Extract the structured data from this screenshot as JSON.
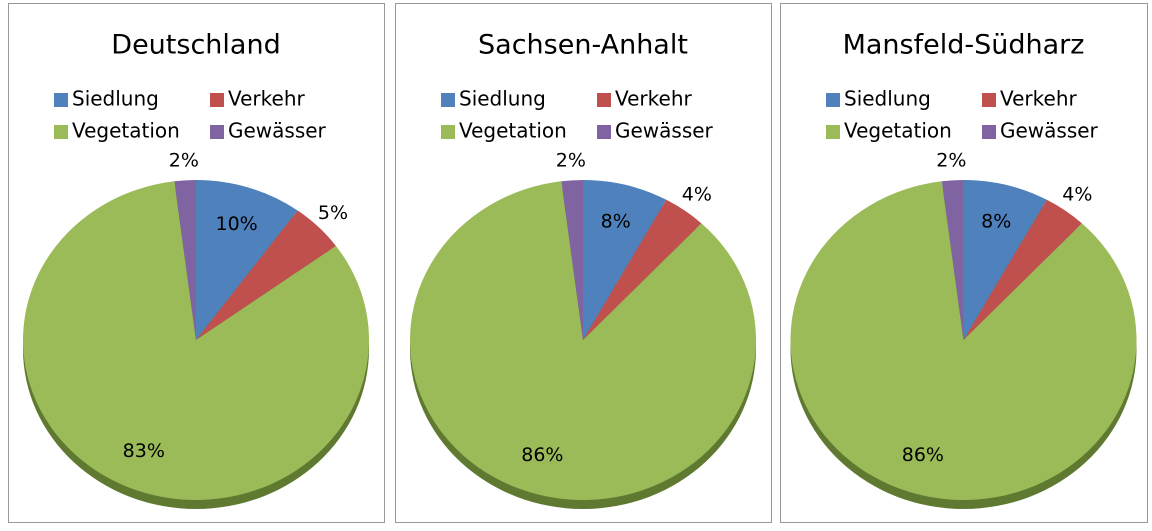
{
  "chart_data": [
    {
      "type": "pie",
      "title": "Deutschland",
      "categories": [
        "Siedlung",
        "Verkehr",
        "Vegetation",
        "Gewässer"
      ],
      "values": [
        10,
        5,
        83,
        2
      ],
      "value_labels": [
        "10%",
        "5%",
        "83%",
        "2%"
      ],
      "colors": [
        "#4f81bd",
        "#c0504d",
        "#9bbb59",
        "#8064a2"
      ]
    },
    {
      "type": "pie",
      "title": "Sachsen-Anhalt",
      "categories": [
        "Siedlung",
        "Verkehr",
        "Vegetation",
        "Gewässer"
      ],
      "values": [
        8,
        4,
        86,
        2
      ],
      "value_labels": [
        "8%",
        "4%",
        "86%",
        "2%"
      ],
      "colors": [
        "#4f81bd",
        "#c0504d",
        "#9bbb59",
        "#8064a2"
      ]
    },
    {
      "type": "pie",
      "title": "Mansfeld-Südharz",
      "categories": [
        "Siedlung",
        "Verkehr",
        "Vegetation",
        "Gewässer"
      ],
      "values": [
        8,
        4,
        86,
        2
      ],
      "value_labels": [
        "8%",
        "4%",
        "86%",
        "2%"
      ],
      "colors": [
        "#4f81bd",
        "#c0504d",
        "#9bbb59",
        "#8064a2"
      ]
    }
  ]
}
